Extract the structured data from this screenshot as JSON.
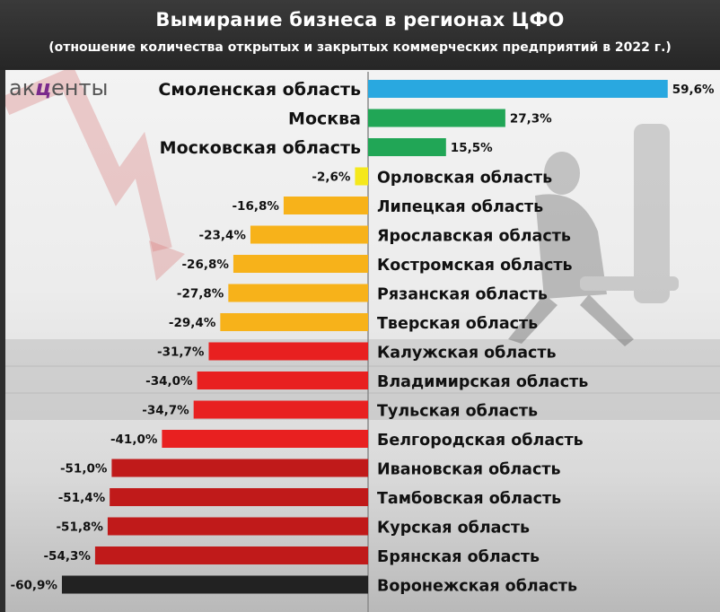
{
  "header": {
    "title": "Вымирание бизнеса в регионах ЦФО",
    "subtitle": "(отношение количества открытых и закрытых коммерческих предприятий в 2022 г.)"
  },
  "logo": {
    "text_start": "ак",
    "text_mark": "ц",
    "text_end": "енты"
  },
  "chart_data": {
    "type": "bar",
    "orientation": "horizontal",
    "title": "Вымирание бизнеса в регионах ЦФО",
    "subtitle": "(отношение количества открытых и закрытых коммерческих предприятий в 2022 г.)",
    "unit": "%",
    "xlim": [
      -60.9,
      59.6
    ],
    "grid": false,
    "legend": "none",
    "categories": [
      "Смоленская область",
      "Москва",
      "Московская область",
      "Орловская область",
      "Липецкая область",
      "Ярославская область",
      "Костромская область",
      "Рязанская область",
      "Тверская область",
      "Калужская область",
      "Владимирская область",
      "Тульская область",
      "Белгородская область",
      "Ивановская область",
      "Тамбовская область",
      "Курская область",
      "Брянская область",
      "Воронежская область"
    ],
    "values": [
      59.6,
      27.3,
      15.5,
      -2.6,
      -16.8,
      -23.4,
      -26.8,
      -27.8,
      -29.4,
      -31.7,
      -34.0,
      -34.7,
      -41.0,
      -51.0,
      -51.4,
      -51.8,
      -54.3,
      -60.9
    ],
    "value_labels": [
      "59,6%",
      "27,3%",
      "15,5%",
      "-2,6%",
      "-16,8%",
      "-23,4%",
      "-26,8%",
      "-27,8%",
      "-29,4%",
      "-31,7%",
      "-34,0%",
      "-34,7%",
      "-41,0%",
      "-51,0%",
      "-51,4%",
      "-51,8%",
      "-54,3%",
      "-60,9%"
    ],
    "colors": [
      "#29a8e0",
      "#21a656",
      "#21a656",
      "#f5e81c",
      "#f7b21a",
      "#f7b21a",
      "#f7b21a",
      "#f7b21a",
      "#f7b21a",
      "#e82020",
      "#e82020",
      "#e82020",
      "#e82020",
      "#c01a1a",
      "#c01a1a",
      "#c01a1a",
      "#c01a1a",
      "#222222"
    ]
  }
}
